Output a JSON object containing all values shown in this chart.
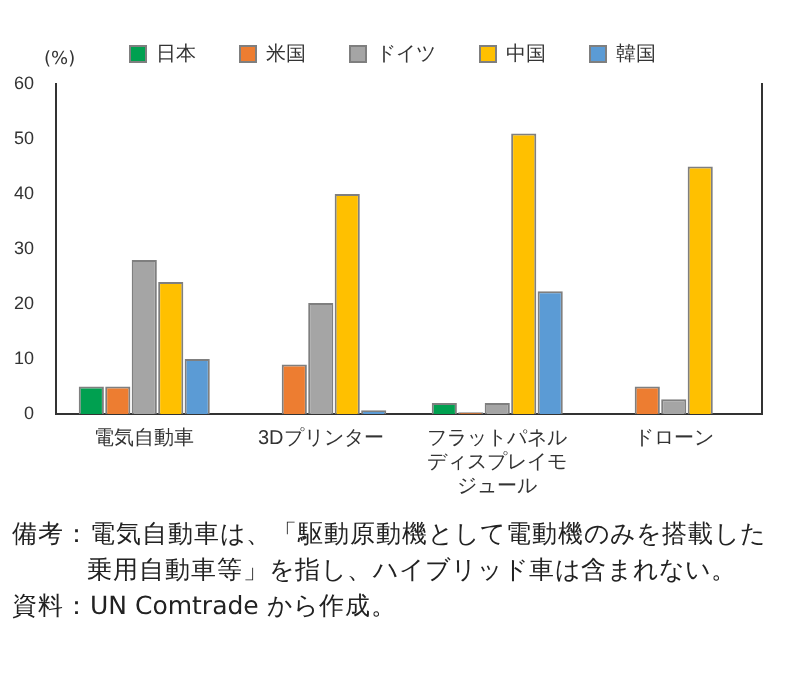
{
  "chart_data": {
    "type": "bar",
    "ylabel": "(%)",
    "categories": [
      "電気自動車",
      "3Dプリンター",
      "フラットパネルディスプレイモジュール",
      "ドローン"
    ],
    "series": [
      {
        "name": "日本",
        "color": "#00a050",
        "values": [
          5,
          null,
          2,
          0
        ]
      },
      {
        "name": "米国",
        "color": "#ed7d31",
        "values": [
          5,
          9,
          0.3,
          5
        ]
      },
      {
        "name": "ドイツ",
        "color": "#a5a5a5",
        "values": [
          28,
          20.2,
          2,
          2.7
        ]
      },
      {
        "name": "中国",
        "color": "#ffc000",
        "values": [
          24,
          40,
          51,
          45
        ]
      },
      {
        "name": "韓国",
        "color": "#5b9bd5",
        "values": [
          10,
          0.7,
          22.3,
          0
        ]
      }
    ],
    "ylim": [
      0,
      60
    ],
    "yticks": [
      0,
      10,
      20,
      30,
      40,
      50,
      60
    ],
    "grid": false,
    "legend": "top",
    "annotations": [
      "備考：電気自動車は、「駆動原動機として電動機のみを搭載した乗用自動車等」を指し、ハイブリッド車は含まれない。",
      "資料：UN Comtrade から作成。"
    ]
  }
}
